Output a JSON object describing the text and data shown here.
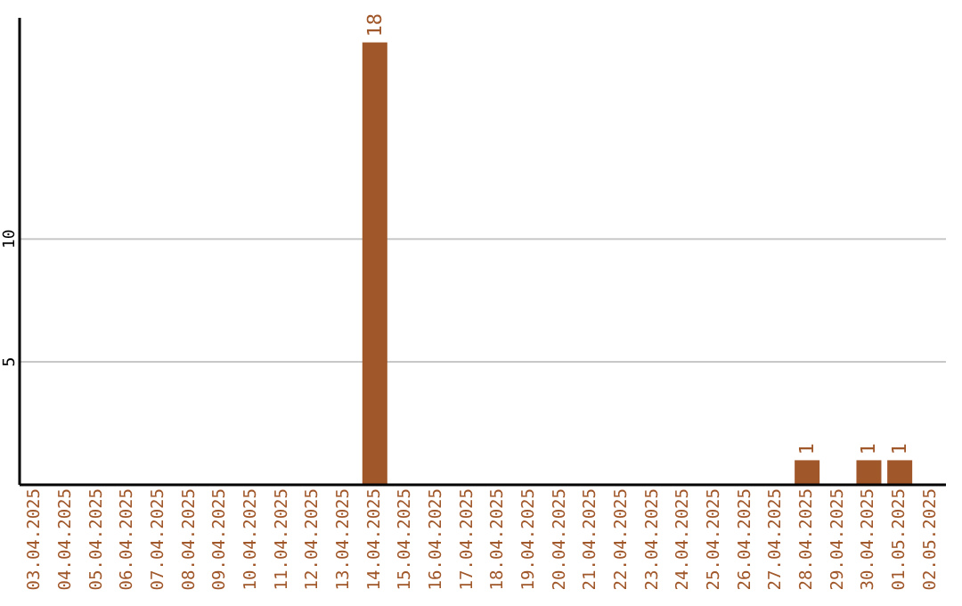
{
  "chart_data": {
    "type": "bar",
    "categories": [
      "03.04.2025",
      "04.04.2025",
      "05.04.2025",
      "06.04.2025",
      "07.04.2025",
      "08.04.2025",
      "09.04.2025",
      "10.04.2025",
      "11.04.2025",
      "12.04.2025",
      "13.04.2025",
      "14.04.2025",
      "15.04.2025",
      "16.04.2025",
      "17.04.2025",
      "18.04.2025",
      "19.04.2025",
      "20.04.2025",
      "21.04.2025",
      "22.04.2025",
      "23.04.2025",
      "24.04.2025",
      "25.04.2025",
      "26.04.2025",
      "27.04.2025",
      "28.04.2025",
      "29.04.2025",
      "30.04.2025",
      "01.05.2025",
      "02.05.2025"
    ],
    "series": [
      {
        "color": "#a0572a",
        "values": [
          0,
          0,
          0,
          0,
          0,
          0,
          0,
          0,
          0,
          0,
          0,
          18,
          0,
          0,
          0,
          0,
          0,
          0,
          0,
          0,
          0,
          0,
          0,
          0,
          0,
          1,
          0,
          1,
          1,
          0
        ],
        "value_labels": [
          null,
          null,
          null,
          null,
          null,
          null,
          null,
          null,
          null,
          null,
          null,
          "18",
          null,
          null,
          null,
          null,
          null,
          null,
          null,
          null,
          null,
          null,
          null,
          null,
          null,
          "1",
          null,
          "1",
          "1",
          null
        ]
      }
    ],
    "ylim": [
      0,
      19
    ],
    "yticks": [
      5,
      10
    ],
    "grid": "y",
    "legend": false
  }
}
